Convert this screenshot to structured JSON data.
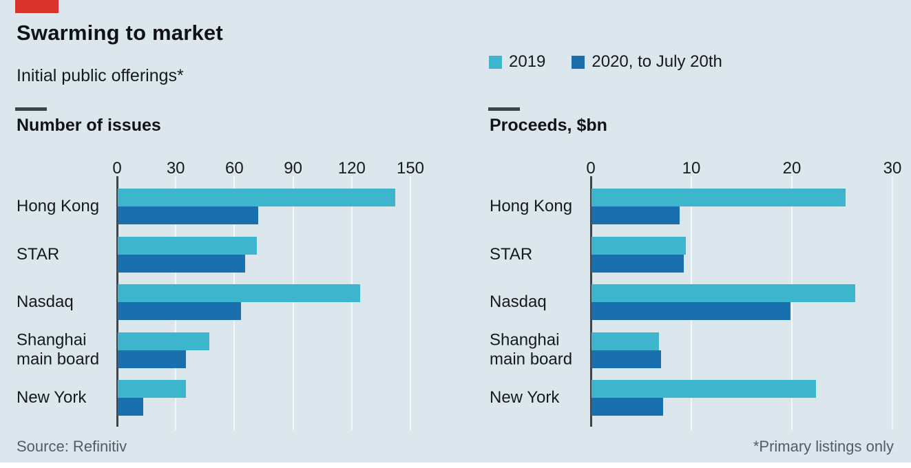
{
  "header": {
    "title": "Swarming to market",
    "subtitle": "Initial public offerings*"
  },
  "legend": [
    {
      "label": "2019",
      "color": "#3db6cd"
    },
    {
      "label": "2020, to July 20th",
      "color": "#1a6fae"
    }
  ],
  "colors": {
    "background": "#dbe7ec",
    "bar_2019": "#3db6cd",
    "bar_2020": "#1a6fae",
    "accent_red": "#d8342c",
    "axis": "#3f444a",
    "gridline": "#f2f7f9",
    "text": "#16191d",
    "muted_text": "#4e5d66"
  },
  "footer": {
    "source": "Source: Refinitiv",
    "footnote": "*Primary listings only"
  },
  "chart_data": [
    {
      "type": "bar",
      "orientation": "horizontal",
      "title": "Number of issues",
      "categories": [
        "Hong Kong",
        "STAR",
        "Nasdaq",
        "Shanghai main board",
        "New York"
      ],
      "series": [
        {
          "name": "2019",
          "values": [
            142,
            71,
            124,
            47,
            35
          ]
        },
        {
          "name": "2020, to July 20th",
          "values": [
            72,
            65,
            63,
            35,
            13
          ]
        }
      ],
      "xlim": [
        0,
        150
      ],
      "xticks": [
        0,
        30,
        60,
        90,
        120,
        150
      ],
      "grid": true,
      "legend_position": "top-right"
    },
    {
      "type": "bar",
      "orientation": "horizontal",
      "title": "Proceeds, $bn",
      "categories": [
        "Hong Kong",
        "STAR",
        "Nasdaq",
        "Shanghai main board",
        "New York"
      ],
      "series": [
        {
          "name": "2019",
          "values": [
            25.3,
            9.4,
            26.2,
            6.7,
            22.3
          ]
        },
        {
          "name": "2020, to July 20th",
          "values": [
            8.8,
            9.2,
            19.8,
            6.9,
            7.1
          ]
        }
      ],
      "xlim": [
        0,
        30
      ],
      "xticks": [
        0,
        10,
        20,
        30
      ],
      "grid": true,
      "legend_position": "top-right"
    }
  ]
}
